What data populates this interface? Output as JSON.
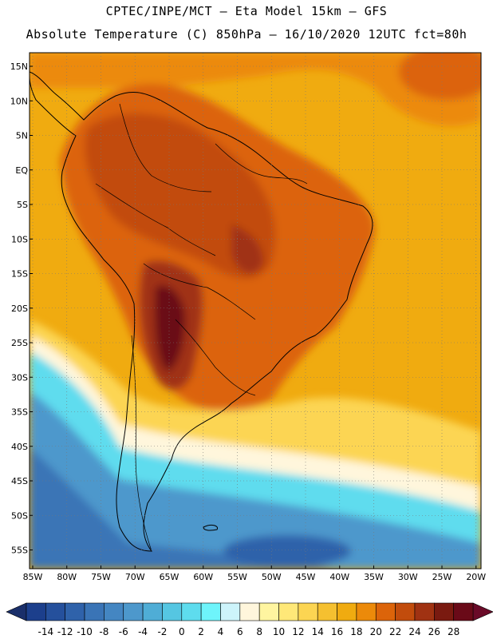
{
  "title": {
    "line1": "CPTEC/INPE/MCT –  Eta Model 15km – GFS",
    "line2": "Absolute Temperature (C) 850hPa – 16/10/2020 12UTC fct=80h"
  },
  "map": {
    "lat_labels": [
      "15N",
      "10N",
      "5N",
      "EQ",
      "5S",
      "10S",
      "15S",
      "20S",
      "25S",
      "30S",
      "35S",
      "40S",
      "45S",
      "50S",
      "55S"
    ],
    "lon_labels": [
      "85W",
      "80W",
      "75W",
      "70W",
      "65W",
      "60W",
      "55W",
      "50W",
      "45W",
      "40W",
      "35W",
      "30W",
      "25W",
      "20W"
    ],
    "lat_values": [
      15,
      10,
      5,
      0,
      -5,
      -10,
      -15,
      -20,
      -25,
      -30,
      -35,
      -40,
      -45,
      -50,
      -55
    ],
    "lon_values": [
      -85,
      -80,
      -75,
      -70,
      -65,
      -60,
      -55,
      -50,
      -45,
      -40,
      -35,
      -30,
      -25,
      -20
    ]
  },
  "colorbar": {
    "labels": [
      "-14",
      "-12",
      "-10",
      "-8",
      "-6",
      "-4",
      "-2",
      "0",
      "2",
      "4",
      "6",
      "8",
      "10",
      "12",
      "14",
      "16",
      "18",
      "20",
      "22",
      "24",
      "26",
      "28"
    ],
    "colors": [
      "#1c3f8c",
      "#25509c",
      "#2f62aa",
      "#3a74b6",
      "#4486c2",
      "#4d98cc",
      "#4fadd6",
      "#55c6e2",
      "#5edcee",
      "#6ef4fb",
      "#cdf4fb",
      "#fff6dc",
      "#fff5a0",
      "#ffe878",
      "#fcd552",
      "#f5c030",
      "#f0ab10",
      "#ec8a0a",
      "#dc640a",
      "#c24c0c",
      "#a03212",
      "#7a1a10",
      "#6a0a18"
    ],
    "low_arrow_color": "#1a2f6a",
    "high_arrow_color": "#6a0a28"
  }
}
